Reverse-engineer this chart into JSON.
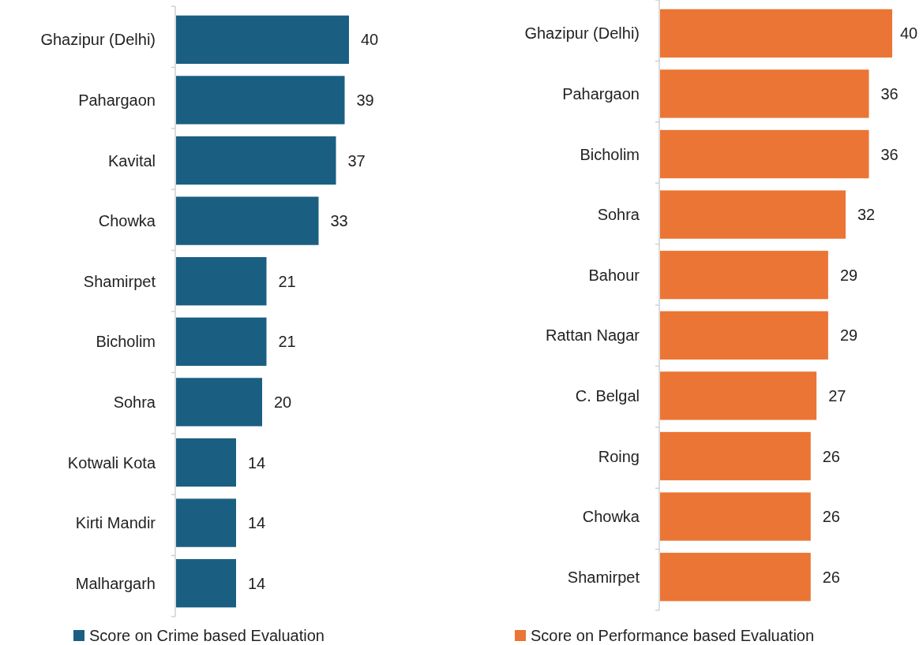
{
  "chart_data": [
    {
      "type": "bar",
      "orientation": "horizontal",
      "categories": [
        "Ghazipur (Delhi)",
        "Pahargaon",
        "Kavital",
        "Chowka",
        "Shamirpet",
        "Bicholim",
        "Sohra",
        "Kotwali Kota",
        "Kirti Mandir",
        "Malhargarh"
      ],
      "series": [
        {
          "name": "Score on Crime based Evaluation",
          "color": "#1a5f82",
          "values": [
            40,
            39,
            37,
            33,
            21,
            21,
            20,
            14,
            14,
            14
          ]
        }
      ],
      "data_labels": true,
      "legend": "bottom"
    },
    {
      "type": "bar",
      "orientation": "horizontal",
      "categories": [
        "Ghazipur (Delhi)",
        "Pahargaon",
        "Bicholim",
        "Sohra",
        "Bahour",
        "Rattan Nagar",
        "C. Belgal",
        "Roing",
        "Chowka",
        "Shamirpet"
      ],
      "series": [
        {
          "name": "Score on Performance based Evaluation",
          "color": "#eb7535",
          "values": [
            40,
            36,
            36,
            32,
            29,
            29,
            27,
            26,
            26,
            26
          ]
        }
      ],
      "data_labels": true,
      "legend": "bottom"
    }
  ]
}
